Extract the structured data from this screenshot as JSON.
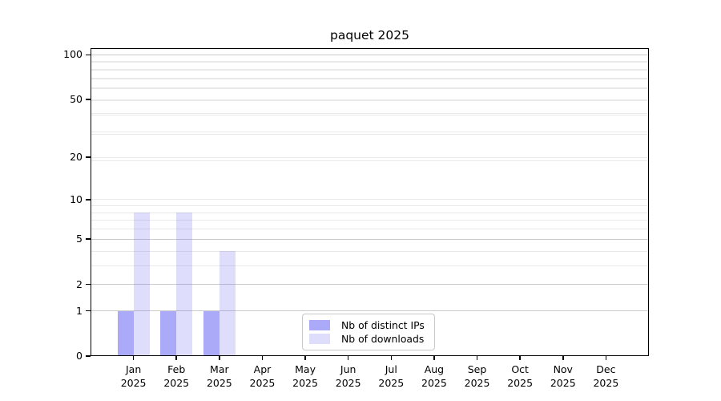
{
  "chart_data": {
    "type": "bar",
    "title": "paquet 2025",
    "year": "2025",
    "months": [
      "Jan",
      "Feb",
      "Mar",
      "Apr",
      "May",
      "Jun",
      "Jul",
      "Aug",
      "Sep",
      "Oct",
      "Nov",
      "Dec"
    ],
    "series": [
      {
        "name": "Nb of distinct IPs",
        "color": "rgba(100,100,242,0.55)",
        "values": [
          1,
          1,
          1,
          0,
          0,
          0,
          0,
          0,
          0,
          0,
          0,
          0
        ]
      },
      {
        "name": "Nb of downloads",
        "color": "rgba(100,100,242,0.21)",
        "values": [
          8,
          8,
          4,
          0,
          0,
          0,
          0,
          0,
          0,
          0,
          0,
          0
        ]
      }
    ],
    "xlabel": "",
    "ylabel": "",
    "yscale": "log1p",
    "ytick_values": [
      0,
      1,
      2,
      5,
      10,
      20,
      50,
      100
    ],
    "ylim": [
      0,
      111
    ],
    "xlim": [
      -1,
      12
    ],
    "grid": "both",
    "gridlines_strong": [
      1,
      2,
      5,
      100
    ],
    "gridlines_weak": [
      3,
      4,
      6,
      7,
      8,
      9,
      10,
      19,
      20,
      29,
      30,
      39,
      40,
      49,
      50,
      59,
      60,
      69,
      70,
      79,
      80,
      89,
      90
    ],
    "legend_position": "lower center",
    "colors": {
      "grid_strong": "#cbcbcb",
      "grid_weak": "#e9e9e9",
      "spine": "#000000",
      "text": "#000000",
      "background": "#ffffff"
    }
  }
}
